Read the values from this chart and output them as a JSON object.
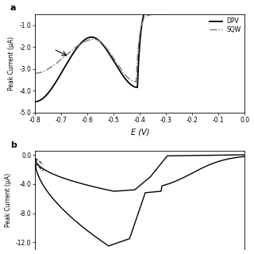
{
  "panel_a": {
    "label": "a",
    "xlabel": "E (V)",
    "ylabel": "Peak Current (μA)",
    "xlim": [
      -0.8,
      0.0
    ],
    "ylim": [
      -5.0,
      -0.5
    ],
    "yticks": [
      -5.0,
      -4.0,
      -3.0,
      -2.0,
      -1.0
    ],
    "xticks": [
      -0.8,
      -0.7,
      -0.6,
      -0.5,
      -0.4,
      -0.3,
      -0.2,
      -0.1,
      0.0
    ],
    "dpv_color": "#000000",
    "sqw_color": "#777777",
    "legend_entries": [
      "DPV",
      "SQW"
    ]
  },
  "panel_b": {
    "label": "b",
    "ylabel": "Peak Current (μA)",
    "xlim": [
      -0.8,
      0.0
    ],
    "ylim": [
      -13.0,
      0.5
    ],
    "yticks": [
      0.0,
      -4.0,
      -8.0,
      -12.0
    ],
    "line_color": "#000000"
  }
}
